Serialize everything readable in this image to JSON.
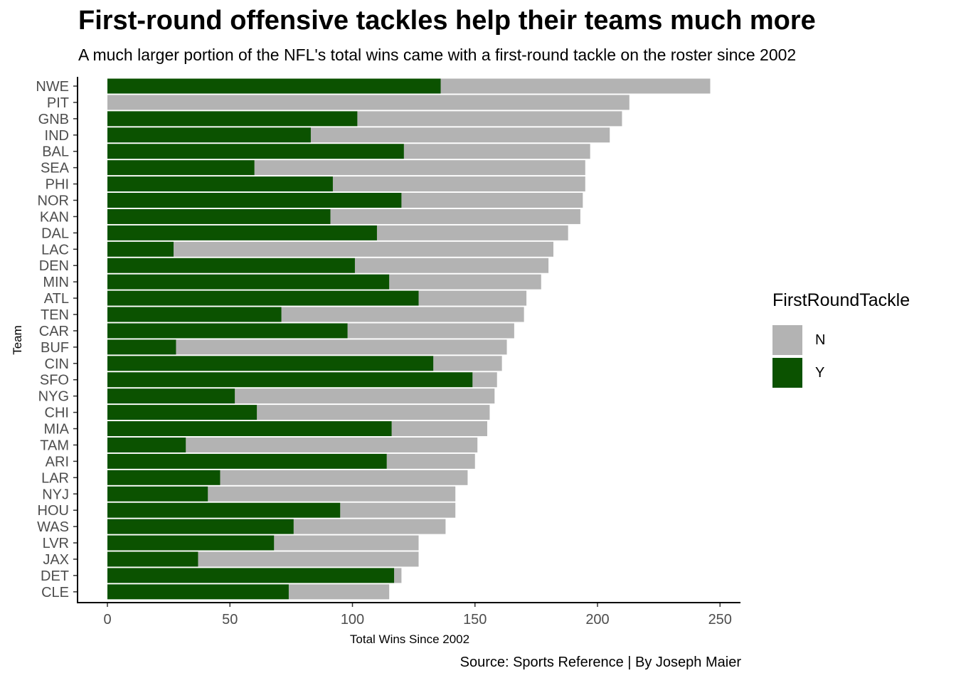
{
  "title": "First-round offensive tackles help their teams much more",
  "subtitle": "A much larger portion of the NFL's total wins came with a first-round tackle on the roster since 2002",
  "caption": "Source: Sports Reference | By Joseph Maier",
  "legend": {
    "title": "FirstRoundTackle",
    "items": [
      {
        "label": "N",
        "color": "#b3b3b3"
      },
      {
        "label": "Y",
        "color": "#0b5200"
      }
    ]
  },
  "chart_data": {
    "type": "bar",
    "orientation": "horizontal",
    "stacked": true,
    "xlabel": "Total Wins Since 2002",
    "ylabel": "Team",
    "xlim": [
      0,
      250
    ],
    "xticks": [
      0,
      50,
      100,
      150,
      200,
      250
    ],
    "grid": false,
    "legend_position": "right",
    "categories": [
      "NWE",
      "PIT",
      "GNB",
      "IND",
      "BAL",
      "SEA",
      "PHI",
      "NOR",
      "KAN",
      "DAL",
      "LAC",
      "DEN",
      "MIN",
      "ATL",
      "TEN",
      "CAR",
      "BUF",
      "CIN",
      "SFO",
      "NYG",
      "CHI",
      "MIA",
      "TAM",
      "ARI",
      "LAR",
      "NYJ",
      "HOU",
      "WAS",
      "LVR",
      "JAX",
      "DET",
      "CLE"
    ],
    "series": [
      {
        "name": "Y",
        "color": "#0b5200",
        "values": [
          136,
          0,
          102,
          83,
          121,
          60,
          92,
          120,
          91,
          110,
          27,
          101,
          115,
          127,
          71,
          98,
          28,
          133,
          149,
          52,
          61,
          116,
          32,
          114,
          46,
          41,
          95,
          76,
          68,
          37,
          117,
          74
        ]
      },
      {
        "name": "N",
        "color": "#b3b3b3",
        "values": [
          110,
          213,
          108,
          122,
          76,
          135,
          103,
          74,
          102,
          78,
          155,
          79,
          62,
          44,
          99,
          68,
          135,
          28,
          10,
          106,
          95,
          39,
          119,
          36,
          101,
          101,
          47,
          62,
          59,
          90,
          3,
          41
        ]
      }
    ]
  }
}
